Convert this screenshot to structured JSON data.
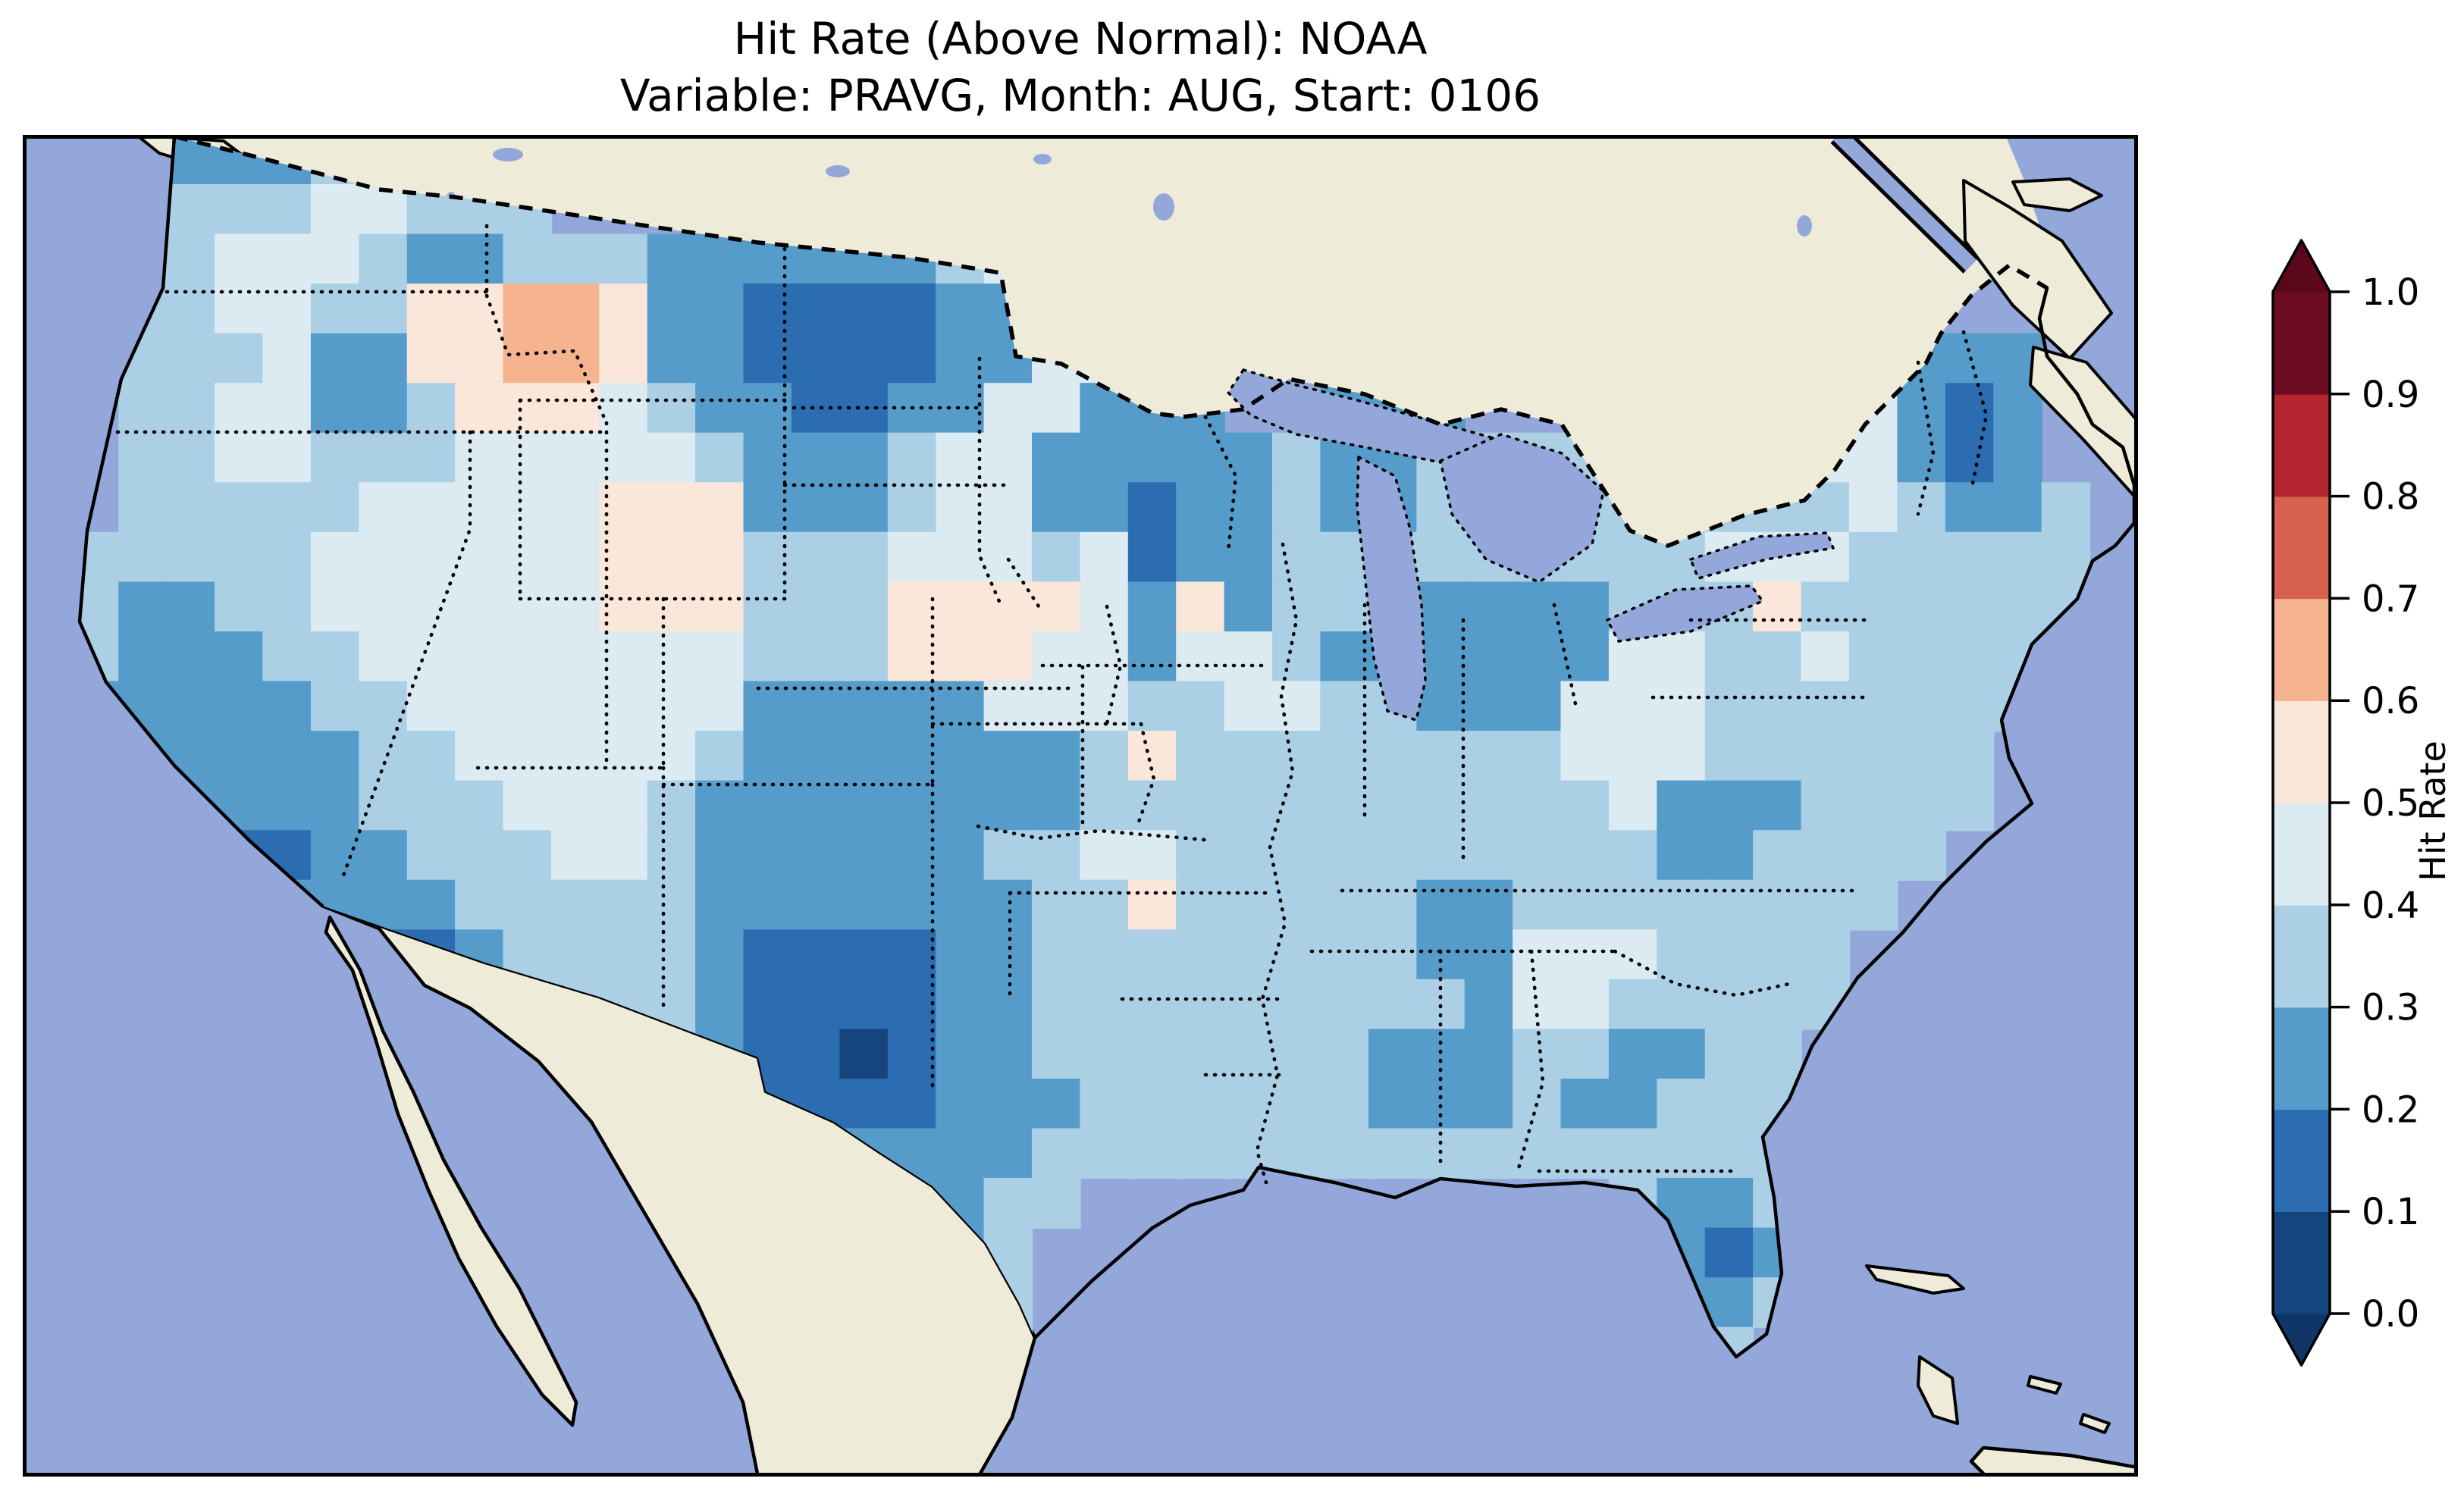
{
  "title": {
    "line1": "Hit Rate (Above Normal): NOAA",
    "line2": "Variable: PRAVG, Month: AUG, Start: 0106"
  },
  "colorbar": {
    "label": "Hit Rate",
    "tick_labels": [
      "0.0",
      "0.1",
      "0.2",
      "0.3",
      "0.4",
      "0.5",
      "0.6",
      "0.7",
      "0.8",
      "0.9",
      "1.0"
    ],
    "bin_colors": [
      "#16457E",
      "#2C6DB2",
      "#569CCA",
      "#ABD0E5",
      "#DCEAF2",
      "#FAE7DA",
      "#F5B48F",
      "#D7604F",
      "#B42431",
      "#6C0C23"
    ],
    "extend_low_color": "#0F3666",
    "extend_high_color": "#5C081C",
    "orientation": "vertical",
    "extend": "both"
  },
  "map": {
    "ocean_color": "#93A7DB",
    "land_color": "#EEEBD9",
    "coastline_color": "#000000",
    "national_border_style": "dashed",
    "state_border_style": "dotted"
  },
  "chart_data": {
    "type": "heatmap",
    "title": "Hit Rate (Above Normal): NOAA",
    "subtitle": "Variable: PRAVG, Month: AUG, Start: 0106",
    "source_model": "NOAA",
    "variable": "PRAVG",
    "month": "AUG",
    "start": "0106",
    "colorbar_label": "Hit Rate",
    "value_range": [
      0.0,
      1.0
    ],
    "bin_boundaries": [
      0.0,
      0.1,
      0.2,
      0.3,
      0.4,
      0.5,
      0.6,
      0.7,
      0.8,
      0.9,
      1.0
    ],
    "legend_position": "right",
    "region": "Continental United States (gridded field, lat/lon cells, RdBu_r discrete colormap, blue = low hit rate, red = high hit rate)",
    "grid": {
      "note": "Approximate 44x27 downsample of the plotted field. Each digit d = hit-rate bin [d*0.1, d*0.1+0.1). '.' = outside data domain (ocean / Canada / Mexico). Most of CONUS sits in bins 2-4 (0.2-0.5); orange/peach bins 5-6 (0.5-0.7) appear in west-central Montana, SW Wyoming, Nebraska and a few single cells; darkest bins 0-1 in NE Wyoming/W South Dakota, west Texas/SE New Mexico (single 0.0-0.1 cell), S Arizona, S California, N Minnesota/Wisconsin, coastal Maine, S Florida.",
      "cols": 44,
      "rows": 27,
      "rows_data": [
        "...22233....................................",
        "...33344333.................................",
        "..3344432233322222234.......................",
        "..3344335566522111122.......................",
        "..3334225566522111122444..............2222..",
        "..33442235554322112244222..222.......34212..",
        "..3344333444443222344222223223333333344212..",
        "..33333444445552223442212232233333333343223.",
        ".333334444445553334443412233333333344433333.",
        ".322334444445553335555425233322223335333333.",
        ".322233444444443335554424432222224433433333.",
        ".22222334444444222224443344332224443333333..",
        ".2222223344444322222223533333333444333333...",
        "..222223334443222222223333333333342223333...",
        "...2112233344322222233443333333333223333....",
        "...222222333332222222335333332233333333.....",
        "....3321123333211112233333333224443333......",
        ".....321223333211112233333333324433333......",
        "......3333333321101223333333222332233.......",
        "..........333321111222333333222322333.......",
        "..............22222223333333333333333.......",
        "................322233...........3223.......",
        ".................3223............3212.......",
        "..................333.............223.......",
        "...................33.............33........",
        "............................................",
        "............................................"
      ]
    }
  }
}
